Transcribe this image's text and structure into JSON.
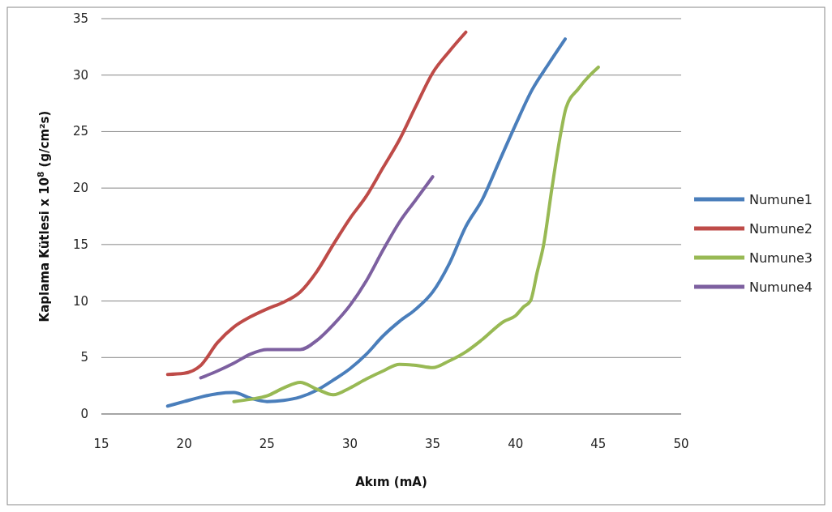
{
  "chart_data": {
    "type": "line",
    "xlabel": "Akım (mA)",
    "ylabel": "Kaplama Kütlesi x 10$^{8}$ (g/cm²s)",
    "xlim": [
      15,
      50
    ],
    "xticks": [
      15,
      20,
      25,
      30,
      35,
      40,
      45,
      50
    ],
    "ylim": [
      0,
      35
    ],
    "yticks": [
      0,
      5,
      10,
      15,
      20,
      25,
      30,
      35
    ],
    "grid": "y",
    "legend": "right",
    "marker": "none",
    "line_style": "solid",
    "series": [
      {
        "name": "Numune1",
        "color": "#4a7ebb",
        "x": [
          19,
          20,
          21,
          22,
          23,
          24,
          25,
          26,
          27,
          28,
          29,
          30,
          31,
          32,
          33,
          34,
          35,
          36,
          37,
          38,
          39,
          40,
          41,
          42,
          43
        ],
        "values": [
          0.7,
          1.1,
          1.5,
          1.8,
          1.9,
          1.4,
          1.1,
          1.2,
          1.5,
          2.1,
          3.0,
          4.0,
          5.3,
          6.9,
          8.2,
          9.3,
          10.8,
          13.3,
          16.6,
          19.0,
          22.3,
          25.6,
          28.7,
          31.0,
          33.2
        ]
      },
      {
        "name": "Numune2",
        "color": "#be4b48",
        "x": [
          19,
          20,
          21,
          22,
          23,
          24,
          25,
          26,
          27,
          28,
          29,
          30,
          31,
          32,
          33,
          34,
          35,
          36,
          37
        ],
        "values": [
          3.5,
          3.6,
          4.3,
          6.3,
          7.7,
          8.6,
          9.3,
          9.9,
          10.8,
          12.6,
          15.0,
          17.3,
          19.3,
          21.8,
          24.3,
          27.3,
          30.2,
          32.1,
          33.8
        ]
      },
      {
        "name": "Numune3",
        "color": "#98b954",
        "x": [
          23,
          24,
          25,
          26,
          27,
          28,
          29,
          30,
          31,
          32,
          33,
          34,
          35,
          36,
          37,
          38,
          39.3,
          40,
          40.5,
          40.9,
          41.3,
          41.7,
          42.2,
          42.75,
          43.05,
          43.8,
          44.5,
          45
        ],
        "values": [
          1.1,
          1.3,
          1.6,
          2.3,
          2.8,
          2.2,
          1.7,
          2.3,
          3.1,
          3.8,
          4.4,
          4.3,
          4.1,
          4.7,
          5.5,
          6.6,
          8.2,
          8.7,
          9.5,
          10,
          12.5,
          15,
          20,
          25,
          27.1,
          28.8,
          30,
          30.7
        ]
      },
      {
        "name": "Numune4",
        "color": "#7d60a0",
        "x": [
          21,
          22,
          23,
          24,
          25,
          26,
          27,
          28,
          29,
          30,
          31,
          32,
          33,
          34,
          35
        ],
        "values": [
          3.2,
          3.8,
          4.5,
          5.3,
          5.7,
          5.7,
          5.7,
          6.5,
          7.9,
          9.6,
          11.8,
          14.5,
          17.0,
          19.0,
          21.0
        ]
      }
    ]
  }
}
